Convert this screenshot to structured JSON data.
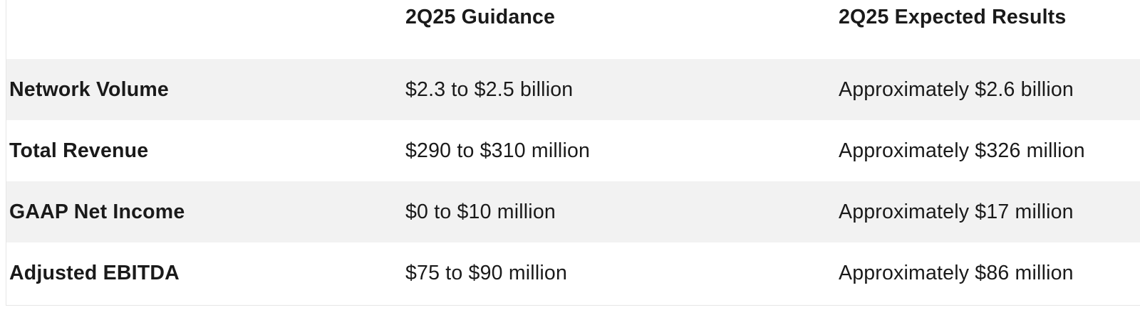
{
  "table": {
    "headers": [
      "",
      "2Q25 Guidance",
      "2Q25 Expected Results"
    ],
    "rows": [
      {
        "metric": "Network Volume",
        "guidance": "$2.3 to $2.5 billion",
        "expected": "Approximately $2.6 billion"
      },
      {
        "metric": "Total Revenue",
        "guidance": "$290 to $310 million",
        "expected": "Approximately $326 million"
      },
      {
        "metric": "GAAP Net Income",
        "guidance": "$0 to $10 million",
        "expected": "Approximately $17 million"
      },
      {
        "metric": "Adjusted EBITDA",
        "guidance": "$75 to $90 million",
        "expected": "Approximately $86 million"
      }
    ]
  },
  "colors": {
    "shaded_row": "#f2f2f2",
    "text": "#1a1a1a"
  }
}
